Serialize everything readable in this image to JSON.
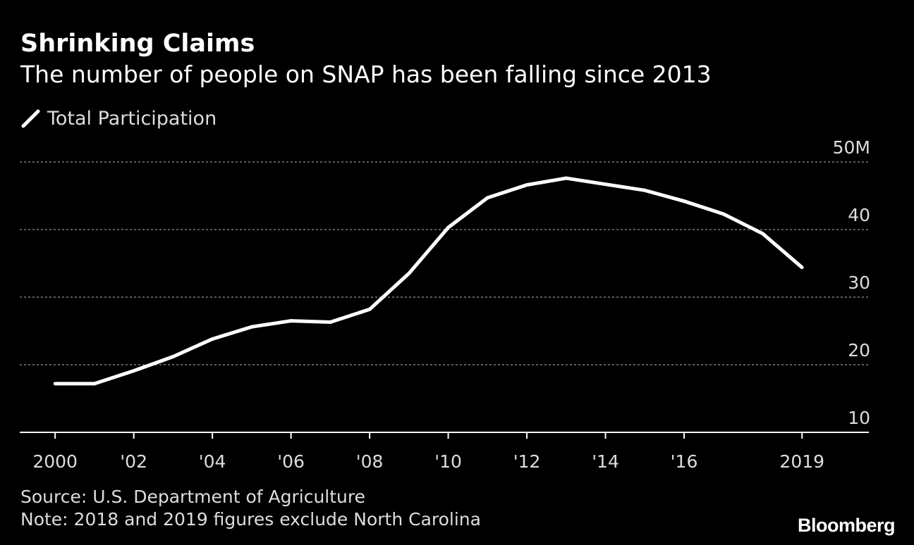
{
  "chart_data": {
    "type": "line",
    "title": "Shrinking Claims",
    "subtitle": "The number of people on SNAP has been falling since 2013",
    "legend": {
      "placement": "top-left",
      "entries": [
        "Total Participation"
      ]
    },
    "x": [
      2000,
      2001,
      2002,
      2003,
      2004,
      2005,
      2006,
      2007,
      2008,
      2009,
      2010,
      2011,
      2012,
      2013,
      2014,
      2015,
      2016,
      2017,
      2018,
      2019
    ],
    "series": [
      {
        "name": "Total Participation",
        "color": "#ffffff",
        "values": [
          17.2,
          17.2,
          19.1,
          21.2,
          23.8,
          25.6,
          26.5,
          26.3,
          28.2,
          33.5,
          40.3,
          44.7,
          46.6,
          47.6,
          46.7,
          45.8,
          44.2,
          42.3,
          39.4,
          34.4
        ]
      }
    ],
    "x_ticks": [
      {
        "value": 2000,
        "label": "2000"
      },
      {
        "value": 2002,
        "label": "'02"
      },
      {
        "value": 2004,
        "label": "'04"
      },
      {
        "value": 2006,
        "label": "'06"
      },
      {
        "value": 2008,
        "label": "'08"
      },
      {
        "value": 2010,
        "label": "'10"
      },
      {
        "value": 2012,
        "label": "'12"
      },
      {
        "value": 2014,
        "label": "'14"
      },
      {
        "value": 2016,
        "label": "'16"
      },
      {
        "value": 2019,
        "label": "2019"
      }
    ],
    "y_ticks": [
      {
        "value": 50,
        "label": "50M"
      },
      {
        "value": 40,
        "label": "40"
      },
      {
        "value": 30,
        "label": "30"
      },
      {
        "value": 20,
        "label": "20"
      },
      {
        "value": 10,
        "label": "10"
      }
    ],
    "xlim": [
      1999.1,
      2020.7
    ],
    "ylim": [
      10,
      50
    ],
    "grid": {
      "horizontal": true,
      "style": "dotted"
    },
    "y_axis_side": "right",
    "source": "Source: U.S. Department of Agriculture",
    "note": "Note: 2018 and 2019 figures exclude North Carolina"
  },
  "branding": {
    "logo_text": "Bloomberg",
    "icon": "bloomberg-wordmark"
  },
  "colors": {
    "background": "#000000",
    "line": "#ffffff",
    "grid": "#7a7a7a",
    "text": "#ffffff",
    "muted_text": "#dddddd"
  }
}
